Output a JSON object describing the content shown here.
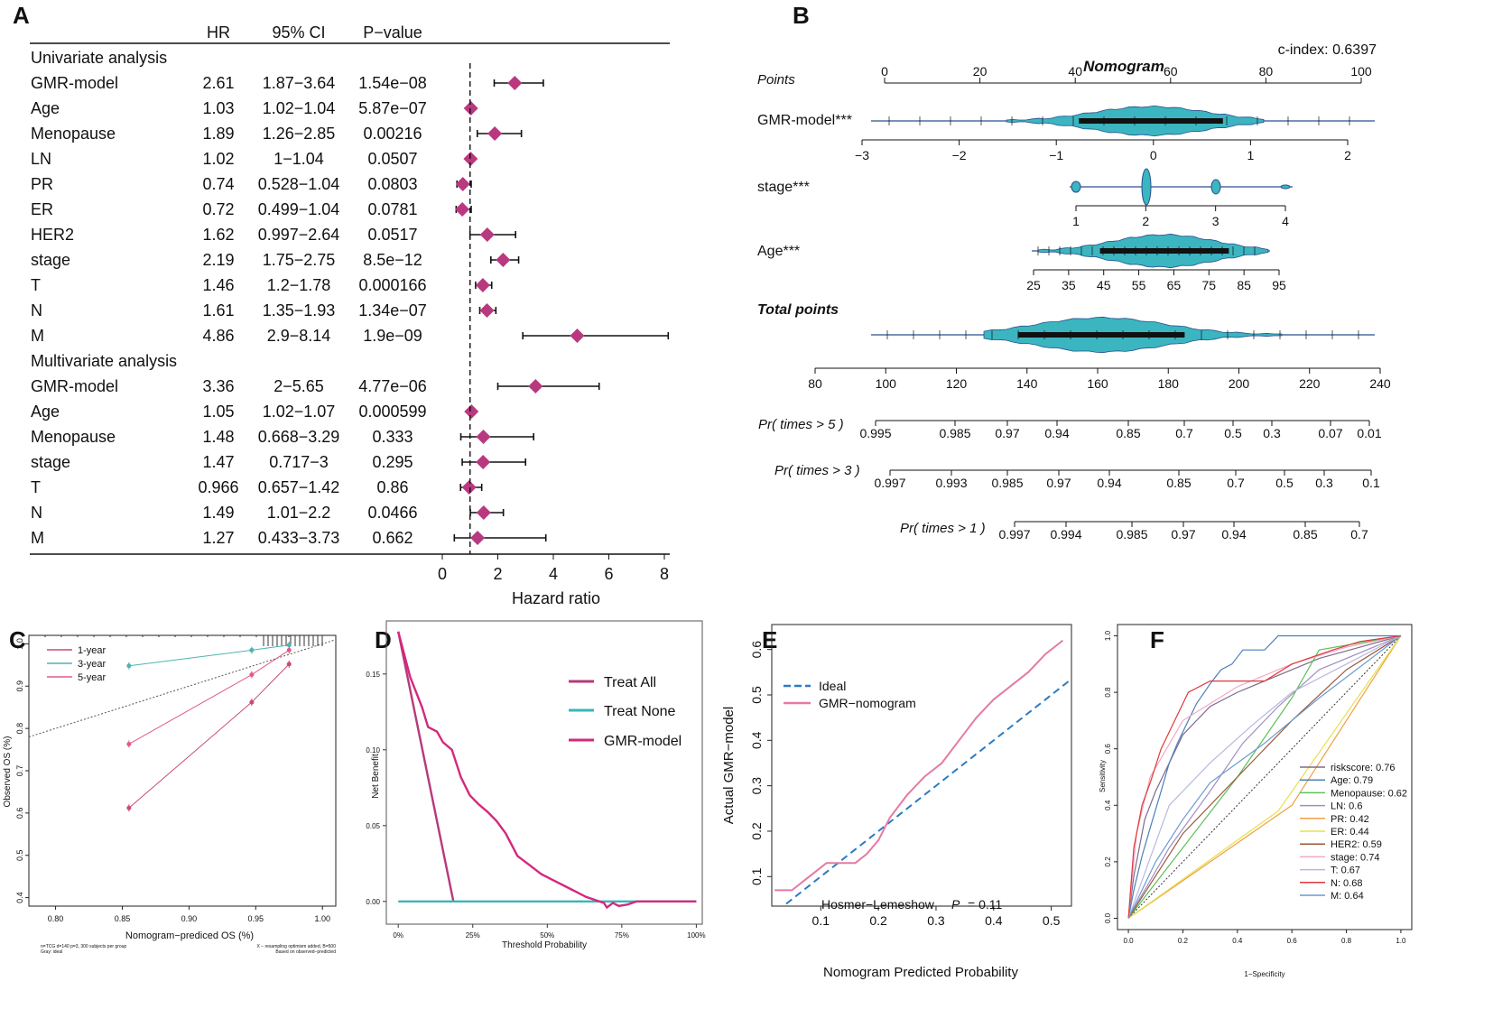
{
  "panel_labels": [
    "A",
    "B",
    "C",
    "D",
    "E",
    "F"
  ],
  "chart_data": [
    {
      "id": "A",
      "type": "forest",
      "columns": [
        "HR",
        "95% CI",
        "P−value"
      ],
      "xlabel": "Hazard ratio",
      "xticks": [
        0,
        2,
        4,
        6,
        8
      ],
      "xlim": [
        0,
        8
      ],
      "reference_line": 1,
      "groups": [
        {
          "title": "Univariate analysis",
          "rows": [
            {
              "name": "GMR-model",
              "hr_text": "2.61",
              "ci_text": "1.87−3.64",
              "p_text": "1.54e−08",
              "hr": 2.61,
              "lo": 1.87,
              "hi": 3.64
            },
            {
              "name": "Age",
              "hr_text": "1.03",
              "ci_text": "1.02−1.04",
              "p_text": "5.87e−07",
              "hr": 1.03,
              "lo": 1.02,
              "hi": 1.04
            },
            {
              "name": "Menopause",
              "hr_text": "1.89",
              "ci_text": "1.26−2.85",
              "p_text": "0.00216",
              "hr": 1.89,
              "lo": 1.26,
              "hi": 2.85
            },
            {
              "name": "LN",
              "hr_text": "1.02",
              "ci_text": "1−1.04",
              "p_text": "0.0507",
              "hr": 1.02,
              "lo": 1.0,
              "hi": 1.04
            },
            {
              "name": "PR",
              "hr_text": "0.74",
              "ci_text": "0.528−1.04",
              "p_text": "0.0803",
              "hr": 0.74,
              "lo": 0.528,
              "hi": 1.04
            },
            {
              "name": "ER",
              "hr_text": "0.72",
              "ci_text": "0.499−1.04",
              "p_text": "0.0781",
              "hr": 0.72,
              "lo": 0.499,
              "hi": 1.04
            },
            {
              "name": "HER2",
              "hr_text": "1.62",
              "ci_text": "0.997−2.64",
              "p_text": "0.0517",
              "hr": 1.62,
              "lo": 0.997,
              "hi": 2.64
            },
            {
              "name": "stage",
              "hr_text": "2.19",
              "ci_text": "1.75−2.75",
              "p_text": "8.5e−12",
              "hr": 2.19,
              "lo": 1.75,
              "hi": 2.75
            },
            {
              "name": "T",
              "hr_text": "1.46",
              "ci_text": "1.2−1.78",
              "p_text": "0.000166",
              "hr": 1.46,
              "lo": 1.2,
              "hi": 1.78
            },
            {
              "name": "N",
              "hr_text": "1.61",
              "ci_text": "1.35−1.93",
              "p_text": "1.34e−07",
              "hr": 1.61,
              "lo": 1.35,
              "hi": 1.93
            },
            {
              "name": "M",
              "hr_text": "4.86",
              "ci_text": "2.9−8.14",
              "p_text": "1.9e−09",
              "hr": 4.86,
              "lo": 2.9,
              "hi": 8.14
            }
          ]
        },
        {
          "title": "Multivariate analysis",
          "rows": [
            {
              "name": "GMR-model",
              "hr_text": "3.36",
              "ci_text": "2−5.65",
              "p_text": "4.77e−06",
              "hr": 3.36,
              "lo": 2.0,
              "hi": 5.65
            },
            {
              "name": "Age",
              "hr_text": "1.05",
              "ci_text": "1.02−1.07",
              "p_text": "0.000599",
              "hr": 1.05,
              "lo": 1.02,
              "hi": 1.07
            },
            {
              "name": "Menopause",
              "hr_text": "1.48",
              "ci_text": "0.668−3.29",
              "p_text": "0.333",
              "hr": 1.48,
              "lo": 0.668,
              "hi": 3.29
            },
            {
              "name": "stage",
              "hr_text": "1.47",
              "ci_text": "0.717−3",
              "p_text": "0.295",
              "hr": 1.47,
              "lo": 0.717,
              "hi": 3.0
            },
            {
              "name": "T",
              "hr_text": "0.966",
              "ci_text": "0.657−1.42",
              "p_text": "0.86",
              "hr": 0.966,
              "lo": 0.657,
              "hi": 1.42
            },
            {
              "name": "N",
              "hr_text": "1.49",
              "ci_text": "1.01−2.2",
              "p_text": "0.0466",
              "hr": 1.49,
              "lo": 1.01,
              "hi": 2.2
            },
            {
              "name": "M",
              "hr_text": "1.27",
              "ci_text": "0.433−3.73",
              "p_text": "0.662",
              "hr": 1.27,
              "lo": 0.433,
              "hi": 3.73
            }
          ]
        }
      ],
      "colors": {
        "diamond": "#b8397f",
        "line": "#111111"
      }
    },
    {
      "id": "B",
      "type": "nomogram",
      "title": "Nomogram",
      "cindex": "c-index: 0.6397",
      "rows": [
        {
          "label": "Points",
          "ticks": [
            "0",
            "20",
            "40",
            "60",
            "80",
            "100"
          ],
          "range": [
            0,
            100
          ]
        },
        {
          "label": "GMR-model***",
          "ticks": [
            "−3",
            "−2",
            "−1",
            "0",
            "1",
            "2"
          ],
          "range": [
            -3,
            2.2
          ]
        },
        {
          "label": "stage***",
          "ticks": [
            "1",
            "2",
            "3",
            "4"
          ],
          "range": [
            1,
            4
          ]
        },
        {
          "label": "Age***",
          "ticks": [
            "25",
            "35",
            "45",
            "55",
            "65",
            "75",
            "85",
            "95"
          ],
          "range": [
            25,
            95
          ]
        },
        {
          "label": "Total points",
          "ticks": [
            "80",
            "100",
            "120",
            "140",
            "160",
            "180",
            "200",
            "220",
            "240"
          ],
          "range": [
            80,
            240
          ]
        },
        {
          "label": "Pr( times > 5 )",
          "ticks": [
            "0.995",
            "0.985",
            "0.97",
            "0.94",
            "0.85",
            "0.7",
            "0.5",
            "0.3",
            "0.07",
            "0.01"
          ]
        },
        {
          "label": "Pr( times > 3 )",
          "ticks": [
            "0.997",
            "0.993",
            "0.985",
            "0.97",
            "0.94",
            "0.85",
            "0.7",
            "0.5",
            "0.3",
            "0.1"
          ]
        },
        {
          "label": "Pr( times > 1 )",
          "ticks": [
            "0.997",
            "0.994",
            "0.985",
            "0.97",
            "0.94",
            "0.85",
            "0.7"
          ]
        }
      ],
      "colors": {
        "violin": "#3bb5c0",
        "axis": "#2a4f8f"
      }
    },
    {
      "id": "C",
      "type": "line",
      "xlabel": "Nomogram−prediced OS (%)",
      "ylabel": "Observed OS (%)",
      "xticks": [
        "0.80",
        "0.85",
        "0.90",
        "0.95",
        "1.00"
      ],
      "yticks": [
        "0.4",
        "0.5",
        "0.6",
        "0.7",
        "0.8",
        "0.9",
        "1.0"
      ],
      "xlim": [
        0.78,
        1.01
      ],
      "ylim": [
        0.38,
        1.02
      ],
      "footnote_left": [
        "n=TCG d=140 p=3, 300 subjects per group",
        "Gray: ideal"
      ],
      "footnote_right": [
        "X − resampling optimism added, B=500",
        "Based on observed−predicted"
      ],
      "series": [
        {
          "name": "1-year",
          "color": "#c94a7a",
          "x": [
            0.855,
            0.947,
            0.975
          ],
          "y": [
            0.612,
            0.862,
            0.952
          ]
        },
        {
          "name": "3-year",
          "color": "#4fb4b0",
          "x": [
            0.855,
            0.947,
            0.975
          ],
          "y": [
            0.948,
            0.985,
            0.997
          ]
        },
        {
          "name": "5-year",
          "color": "#e05a8a",
          "x": [
            0.855,
            0.947,
            0.975
          ],
          "y": [
            0.763,
            0.927,
            0.985
          ]
        }
      ],
      "ideal": {
        "x": [
          0.78,
          1.01
        ],
        "y": [
          0.78,
          1.01
        ]
      }
    },
    {
      "id": "D",
      "type": "line",
      "xlabel": "Threshold Probability",
      "ylabel": "Net Benefit",
      "xticks": [
        "0%",
        "25%",
        "50%",
        "75%",
        "100%"
      ],
      "yticks": [
        "0.00",
        "0.05",
        "0.10",
        "0.15"
      ],
      "xlim": [
        -0.04,
        1.02
      ],
      "ylim": [
        -0.015,
        0.185
      ],
      "series": [
        {
          "name": "Treat All",
          "color": "#b8387a",
          "x": [
            0.0,
            0.185
          ],
          "y": [
            0.178,
            0.0
          ]
        },
        {
          "name": "Treat None",
          "color": "#3ab5b8",
          "x": [
            0.0,
            1.0
          ],
          "y": [
            0.0,
            0.0
          ]
        },
        {
          "name": "GMR-model",
          "color": "#d4287e",
          "x": [
            0.0,
            0.04,
            0.08,
            0.1,
            0.13,
            0.15,
            0.18,
            0.21,
            0.24,
            0.27,
            0.3,
            0.33,
            0.36,
            0.4,
            0.44,
            0.48,
            0.52,
            0.56,
            0.6,
            0.63,
            0.66,
            0.69,
            0.7,
            0.72,
            0.74,
            0.77,
            0.8,
            0.9,
            1.0
          ],
          "y": [
            0.178,
            0.148,
            0.128,
            0.115,
            0.112,
            0.105,
            0.1,
            0.082,
            0.07,
            0.064,
            0.059,
            0.053,
            0.045,
            0.03,
            0.024,
            0.018,
            0.014,
            0.01,
            0.006,
            0.003,
            0.001,
            -0.001,
            -0.004,
            -0.001,
            -0.003,
            -0.002,
            0.0,
            0.0,
            0.0
          ]
        }
      ]
    },
    {
      "id": "E",
      "type": "line",
      "xlabel": "Nomogram Predicted Probability",
      "ylabel": "Actual GMR−model",
      "xticks": [
        "0.1",
        "0.2",
        "0.3",
        "0.4",
        "0.5"
      ],
      "yticks": [
        "0.1",
        "0.2",
        "0.3",
        "0.4",
        "0.5",
        "0.6"
      ],
      "xlim": [
        0.015,
        0.535
      ],
      "ylim": [
        0.035,
        0.655
      ],
      "annotation": {
        "text": "Hosmer−Lemeshow",
        "pvar": "P",
        "pval": "= 0.11"
      },
      "series": [
        {
          "name": "Ideal",
          "color": "#2c7bc0",
          "dashed": true,
          "x": [
            0.04,
            0.535
          ],
          "y": [
            0.04,
            0.535
          ]
        },
        {
          "name": "GMR−nomogram",
          "color": "#e57aa6",
          "dashed": false,
          "x": [
            0.02,
            0.05,
            0.08,
            0.11,
            0.14,
            0.16,
            0.18,
            0.2,
            0.22,
            0.25,
            0.28,
            0.31,
            0.34,
            0.37,
            0.4,
            0.43,
            0.46,
            0.49,
            0.52
          ],
          "y": [
            0.07,
            0.07,
            0.1,
            0.13,
            0.13,
            0.13,
            0.15,
            0.18,
            0.23,
            0.28,
            0.32,
            0.35,
            0.4,
            0.45,
            0.49,
            0.52,
            0.55,
            0.59,
            0.62
          ]
        }
      ]
    },
    {
      "id": "F",
      "type": "line",
      "xlabel": "1−Specificity",
      "ylabel": "Sensitivity",
      "xticks": [
        "0.0",
        "0.2",
        "0.4",
        "0.6",
        "0.8",
        "1.0"
      ],
      "yticks": [
        "0.0",
        "0.2",
        "0.4",
        "0.6",
        "0.8",
        "1.0"
      ],
      "xlim": [
        -0.04,
        1.04
      ],
      "ylim": [
        -0.04,
        1.04
      ],
      "series": [
        {
          "name": "riskscore: 0.76",
          "color": "#7d6b8a",
          "x": [
            0,
            0.02,
            0.04,
            0.06,
            0.1,
            0.15,
            0.2,
            0.3,
            0.4,
            0.55,
            0.7,
            0.85,
            1.0
          ],
          "y": [
            0,
            0.15,
            0.25,
            0.35,
            0.45,
            0.55,
            0.65,
            0.75,
            0.8,
            0.86,
            0.92,
            0.96,
            1.0
          ]
        },
        {
          "name": "Age: 0.79",
          "color": "#4d7fb8",
          "x": [
            0,
            0.02,
            0.05,
            0.08,
            0.12,
            0.15,
            0.18,
            0.22,
            0.25,
            0.3,
            0.34,
            0.38,
            0.42,
            0.5,
            0.55,
            0.7,
            0.85,
            1.0
          ],
          "y": [
            0,
            0.1,
            0.22,
            0.32,
            0.45,
            0.55,
            0.62,
            0.7,
            0.76,
            0.83,
            0.88,
            0.9,
            0.95,
            0.95,
            1.0,
            1.0,
            1.0,
            1.0
          ]
        },
        {
          "name": "Menopause: 0.62",
          "color": "#5fbf5a",
          "x": [
            0,
            0.2,
            0.4,
            0.6,
            0.7,
            1.0
          ],
          "y": [
            0,
            0.25,
            0.5,
            0.78,
            0.95,
            1.0
          ]
        },
        {
          "name": "LN: 0.6",
          "color": "#a08fc4",
          "x": [
            0,
            0.15,
            0.3,
            0.42,
            0.55,
            0.7,
            1.0
          ],
          "y": [
            0,
            0.25,
            0.45,
            0.62,
            0.75,
            0.88,
            1.0
          ]
        },
        {
          "name": "PR: 0.42",
          "color": "#f0a040",
          "x": [
            0,
            0.6,
            1.0
          ],
          "y": [
            0,
            0.4,
            1.0
          ]
        },
        {
          "name": "ER: 0.44",
          "color": "#e8e04a",
          "x": [
            0,
            0.55,
            1.0
          ],
          "y": [
            0,
            0.38,
            1.0
          ]
        },
        {
          "name": "HER2: 0.59",
          "color": "#9a5a3a",
          "x": [
            0,
            0.2,
            0.4,
            0.6,
            0.8,
            1.0
          ],
          "y": [
            0,
            0.3,
            0.5,
            0.7,
            0.88,
            1.0
          ]
        },
        {
          "name": "stage: 0.74",
          "color": "#f0a8c8",
          "x": [
            0,
            0.03,
            0.08,
            0.2,
            0.4,
            0.6,
            0.8,
            1.0
          ],
          "y": [
            0,
            0.3,
            0.5,
            0.7,
            0.82,
            0.9,
            0.96,
            1.0
          ]
        },
        {
          "name": "T: 0.67",
          "color": "#b8b8e0",
          "x": [
            0,
            0.15,
            0.3,
            0.45,
            0.6,
            0.8,
            1.0
          ],
          "y": [
            0,
            0.4,
            0.55,
            0.68,
            0.8,
            0.9,
            1.0
          ]
        },
        {
          "name": "N: 0.68",
          "color": "#e03838",
          "x": [
            0,
            0.02,
            0.05,
            0.08,
            0.12,
            0.18,
            0.22,
            0.3,
            0.4,
            0.5,
            0.6,
            0.75,
            0.85,
            1.0
          ],
          "y": [
            0,
            0.25,
            0.4,
            0.48,
            0.6,
            0.72,
            0.8,
            0.84,
            0.84,
            0.84,
            0.9,
            0.95,
            0.98,
            1.0
          ]
        },
        {
          "name": "M: 0.64",
          "color": "#6a9ad0",
          "x": [
            0,
            0.1,
            0.2,
            0.3,
            0.5,
            0.7,
            1.0
          ],
          "y": [
            0,
            0.2,
            0.35,
            0.48,
            0.62,
            0.78,
            1.0
          ]
        }
      ],
      "reference": {
        "x": [
          0,
          1
        ],
        "y": [
          0,
          1
        ]
      }
    }
  ]
}
